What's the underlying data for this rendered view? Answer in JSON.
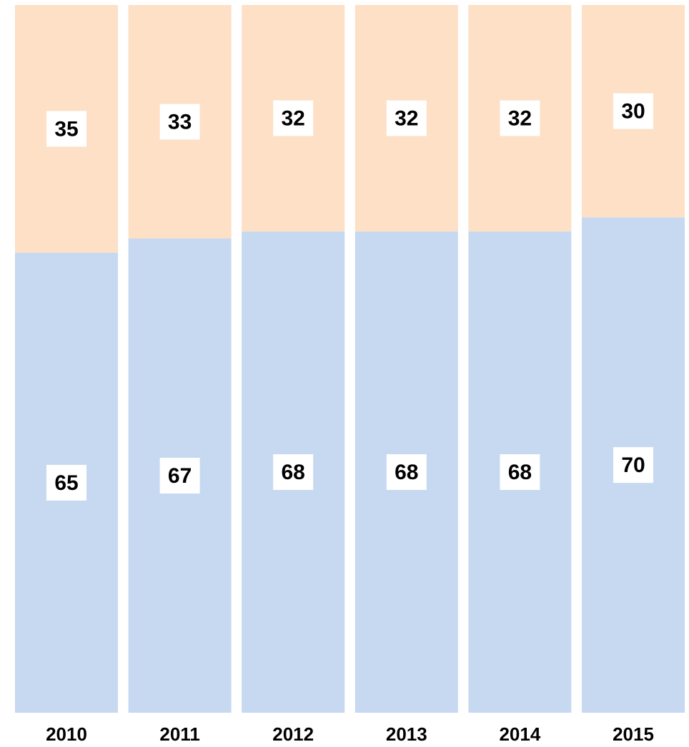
{
  "chart_data": {
    "type": "bar",
    "stacked": true,
    "categories": [
      "2010",
      "2011",
      "2012",
      "2013",
      "2014",
      "2015"
    ],
    "series": [
      {
        "color": "#c6d9f1",
        "values": [
          65,
          67,
          68,
          68,
          68,
          70
        ]
      },
      {
        "color": "#fde0c6",
        "values": [
          35,
          33,
          32,
          32,
          32,
          30
        ]
      }
    ],
    "ylim": [
      0,
      100
    ]
  }
}
